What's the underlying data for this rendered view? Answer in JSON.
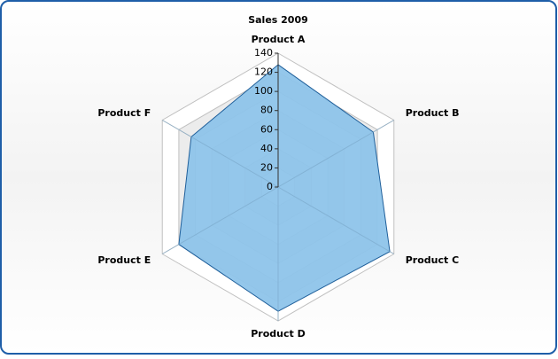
{
  "chart_data": {
    "type": "radar",
    "title": "Sales 2009",
    "categories": [
      "Product A",
      "Product B",
      "Product C",
      "Product D",
      "Product E",
      "Product F"
    ],
    "values": [
      128,
      115,
      135,
      130,
      120,
      105
    ],
    "color": "#8ec4ea",
    "line_color": "#1f5f9a",
    "ylim": [
      0,
      140
    ],
    "yticks": [
      0,
      20,
      40,
      60,
      80,
      100,
      120,
      140
    ],
    "grid": true
  }
}
